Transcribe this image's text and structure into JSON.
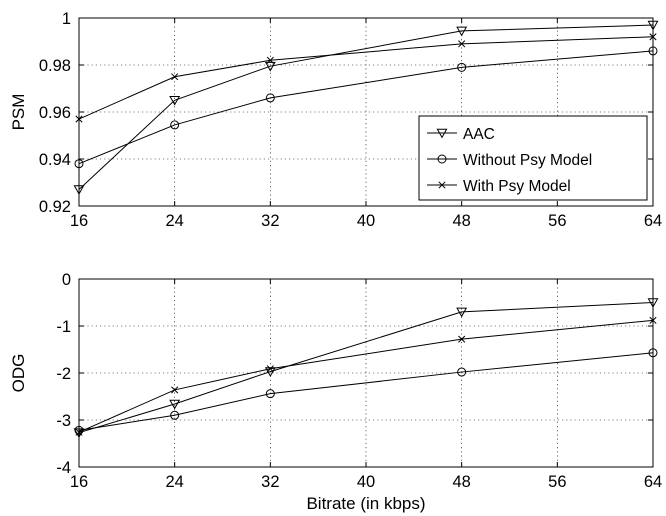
{
  "chart_data": [
    {
      "type": "line",
      "title": "",
      "xlabel": "",
      "ylabel": "PSM",
      "xlim": [
        16,
        64
      ],
      "ylim": [
        0.92,
        1
      ],
      "grid": true,
      "xticks": [
        16,
        24,
        32,
        40,
        48,
        56,
        64
      ],
      "xtick_labels": [
        "16",
        "24",
        "32",
        "40",
        "48",
        "56",
        "64"
      ],
      "yticks": [
        0.92,
        0.94,
        0.96,
        0.98,
        1
      ],
      "ytick_labels": [
        "0.92",
        "0.94",
        "0.96",
        "0.98",
        "1"
      ],
      "legend": "center-right",
      "x": [
        16,
        24,
        32,
        48,
        64
      ],
      "series": [
        {
          "name": "AAC",
          "marker": "triangle-down",
          "values": [
            0.927,
            0.965,
            0.9795,
            0.9945,
            0.997
          ]
        },
        {
          "name": "Without Psy Model",
          "marker": "circle",
          "values": [
            0.938,
            0.9545,
            0.966,
            0.979,
            0.986
          ]
        },
        {
          "name": "With Psy Model",
          "marker": "x",
          "values": [
            0.957,
            0.975,
            0.982,
            0.989,
            0.992
          ]
        }
      ]
    },
    {
      "type": "line",
      "title": "",
      "xlabel": "Bitrate (in kbps)",
      "ylabel": "ODG",
      "xlim": [
        16,
        64
      ],
      "ylim": [
        -4,
        0
      ],
      "grid": true,
      "xticks": [
        16,
        24,
        32,
        40,
        48,
        56,
        64
      ],
      "xtick_labels": [
        "16",
        "24",
        "32",
        "40",
        "48",
        "56",
        "64"
      ],
      "yticks": [
        -4,
        -3,
        -2,
        -1,
        0
      ],
      "ytick_labels": [
        "-4",
        "-3",
        "-2",
        "-1",
        "0"
      ],
      "x": [
        16,
        24,
        32,
        48,
        64
      ],
      "series": [
        {
          "name": "AAC",
          "marker": "triangle-down",
          "values": [
            -3.27,
            -2.66,
            -1.97,
            -0.7,
            -0.5
          ]
        },
        {
          "name": "Without Psy Model",
          "marker": "circle",
          "values": [
            -3.22,
            -2.9,
            -2.44,
            -1.98,
            -1.57
          ]
        },
        {
          "name": "With Psy Model",
          "marker": "x",
          "values": [
            -3.26,
            -2.36,
            -1.91,
            -1.28,
            -0.88
          ]
        }
      ]
    }
  ]
}
